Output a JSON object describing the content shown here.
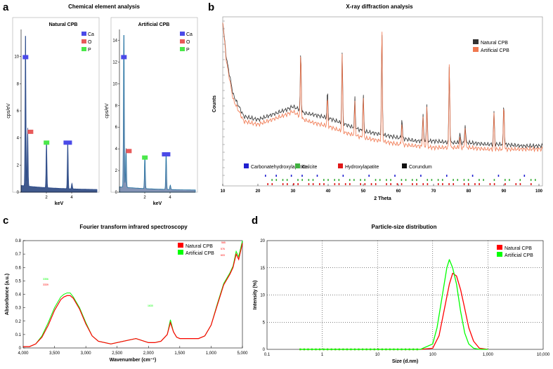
{
  "panel_labels": [
    "a",
    "b",
    "c",
    "d"
  ],
  "colors": {
    "eds_fill": "#1f3c78",
    "eds_line2": "#1f6fa0",
    "ca": "#4a4ae8",
    "o": "#e85a5a",
    "p": "#4ae84a",
    "xrd_natural": "#333333",
    "xrd_artificial": "#f07850",
    "natural_cpb": "#ff0000",
    "artificial_cpb": "#00ff00",
    "carbonate": "#2020d0",
    "calcite": "#40b040",
    "hydroxylapatite": "#e01818",
    "corundum": "#111111"
  },
  "chart_data": [
    {
      "type": "area",
      "title": "Chemical element analysis",
      "subtitle": "Natural CPB",
      "xlabel": "keV",
      "ylabel": "cps/eV",
      "xticks": [
        "2",
        "4"
      ],
      "yticks": [
        "0",
        "2",
        "4",
        "6",
        "8",
        "10"
      ],
      "ylim": [
        0,
        12
      ],
      "xlim": [
        0,
        6
      ],
      "legend": [
        "Ca",
        "O",
        "P"
      ],
      "peaks": [
        {
          "element": "Ca",
          "x": 0.35,
          "y": 11.6
        },
        {
          "element": "O",
          "x": 0.52,
          "y": 4.3
        },
        {
          "element": "P",
          "x": 2.01,
          "y": 3.5
        },
        {
          "element": "Ca",
          "x": 3.69,
          "y": 3.5
        }
      ]
    },
    {
      "type": "area",
      "subtitle": "Artificial CPB",
      "xlabel": "keV",
      "ylabel": "cps/eV",
      "xticks": [
        "2",
        "4"
      ],
      "yticks": [
        "0",
        "2",
        "4",
        "6",
        "8",
        "10",
        "12",
        "14"
      ],
      "ylim": [
        0,
        15
      ],
      "xlim": [
        0,
        6
      ],
      "legend": [
        "Ca",
        "O",
        "P"
      ],
      "peaks": [
        {
          "element": "Ca",
          "x": 0.35,
          "y": 14.7
        },
        {
          "element": "O",
          "x": 0.52,
          "y": 3.6
        },
        {
          "element": "P",
          "x": 2.01,
          "y": 3.0
        },
        {
          "element": "Ca",
          "x": 3.69,
          "y": 3.3
        }
      ]
    },
    {
      "type": "line",
      "title": "X-ray diffraction analysis",
      "xlabel": "2 Theta",
      "ylabel": "Counts",
      "xticks": [
        "10",
        "20",
        "30",
        "40",
        "50",
        "60",
        "70",
        "80",
        "90",
        "100"
      ],
      "xlim": [
        10,
        101
      ],
      "series": [
        {
          "name": "Natural CPB",
          "x": [
            10,
            11,
            13,
            16,
            20,
            24,
            28,
            30,
            32,
            33,
            36,
            40,
            45,
            50,
            55,
            60,
            65,
            70,
            75,
            80,
            85,
            90,
            95,
            100
          ],
          "y": [
            100,
            78,
            55,
            42,
            40,
            43,
            46,
            48,
            46,
            44,
            43,
            41,
            37,
            33,
            31,
            29,
            27,
            27,
            26,
            26,
            25,
            25,
            24,
            24
          ]
        },
        {
          "name": "Artificial CPB",
          "x": [
            10,
            11,
            13,
            16,
            20,
            24,
            28,
            30,
            32,
            33,
            36,
            40,
            45,
            50,
            55,
            60,
            65,
            70,
            75,
            80,
            85,
            90,
            95,
            100
          ],
          "y": [
            100,
            76,
            52,
            39,
            37,
            40,
            43,
            45,
            42,
            40,
            38,
            36,
            32,
            29,
            27,
            25,
            24,
            23,
            23,
            23,
            22,
            22,
            22,
            22
          ]
        }
      ],
      "peaks_2theta": [
        32.2,
        39.8,
        44.0,
        47.6,
        50.0,
        55.3,
        61.0,
        67.0,
        68.1,
        74.5,
        77.5,
        79.0,
        87.2,
        90.0
      ],
      "legend_lower": [
        "Carbonatehydroxylapatite",
        "Calcite",
        "Hydroxylapatite",
        "Corundum"
      ]
    },
    {
      "type": "line",
      "title": "Fourier transform infrared spectroscopy",
      "xlabel": "Wavenumber (cm⁻¹)",
      "ylabel": "Absorbance (a.u.)",
      "xticks": [
        "4,000",
        "3,500",
        "3,000",
        "2,500",
        "2,000",
        "1,500",
        "1,000",
        "5,000"
      ],
      "yticks": [
        "0",
        "0.1",
        "0.2",
        "0.3",
        "0.4",
        "0.5",
        "0.6",
        "0.7",
        "0.8"
      ],
      "ylim": [
        0,
        0.8
      ],
      "xlim": [
        4000,
        500
      ],
      "series": [
        {
          "name": "Natural CPB",
          "x": [
            4000,
            3900,
            3800,
            3700,
            3600,
            3500,
            3400,
            3350,
            3300,
            3250,
            3200,
            3100,
            3000,
            2900,
            2800,
            2600,
            2400,
            2200,
            2000,
            1900,
            1800,
            1700,
            1650,
            1600,
            1550,
            1500,
            1400,
            1200,
            1100,
            1000,
            900,
            800,
            700,
            650,
            600,
            560,
            520,
            500
          ],
          "y": [
            0.01,
            0.01,
            0.03,
            0.08,
            0.17,
            0.28,
            0.36,
            0.38,
            0.39,
            0.39,
            0.37,
            0.29,
            0.18,
            0.09,
            0.05,
            0.03,
            0.05,
            0.07,
            0.04,
            0.04,
            0.05,
            0.1,
            0.19,
            0.12,
            0.08,
            0.07,
            0.07,
            0.07,
            0.09,
            0.17,
            0.32,
            0.47,
            0.55,
            0.6,
            0.7,
            0.66,
            0.74,
            0.78
          ]
        },
        {
          "name": "Artificial CPB",
          "x": [
            4000,
            3900,
            3800,
            3700,
            3600,
            3500,
            3400,
            3350,
            3300,
            3250,
            3200,
            3100,
            3000,
            2900,
            2800,
            2600,
            2400,
            2200,
            2000,
            1900,
            1800,
            1700,
            1650,
            1600,
            1550,
            1500,
            1400,
            1200,
            1100,
            1000,
            900,
            800,
            700,
            650,
            600,
            560,
            520,
            500
          ],
          "y": [
            0.01,
            0.01,
            0.03,
            0.09,
            0.19,
            0.3,
            0.38,
            0.4,
            0.41,
            0.41,
            0.38,
            0.3,
            0.19,
            0.09,
            0.05,
            0.03,
            0.05,
            0.07,
            0.04,
            0.04,
            0.05,
            0.1,
            0.21,
            0.12,
            0.08,
            0.07,
            0.07,
            0.07,
            0.09,
            0.17,
            0.33,
            0.48,
            0.56,
            0.61,
            0.72,
            0.68,
            0.76,
            0.8
          ]
        }
      ],
      "annotations": [
        {
          "text": "3339",
          "color": "red"
        },
        {
          "text": "3356",
          "color": "green"
        },
        {
          "text": "1630",
          "color": "green"
        },
        {
          "text": "565",
          "color": "red"
        },
        {
          "text": "576",
          "color": "red"
        },
        {
          "text": "603",
          "color": "red"
        }
      ]
    },
    {
      "type": "line",
      "title": "Particle-size distribution",
      "xlabel": "Size (d.nm)",
      "ylabel": "Intensity (%)",
      "xscale": "log",
      "xlim": [
        0.1,
        10000
      ],
      "ylim": [
        0,
        20
      ],
      "xticks": [
        "0.1",
        "1",
        "10",
        "100",
        "1,000",
        "10,000"
      ],
      "yticks": [
        "0",
        "5",
        "10",
        "15",
        "20"
      ],
      "series": [
        {
          "name": "Natural CPB",
          "x": [
            0.4,
            1,
            10,
            60,
            100,
            130,
            160,
            200,
            230,
            270,
            320,
            380,
            450,
            550,
            700,
            1000
          ],
          "y": [
            0,
            0,
            0,
            0,
            0.2,
            2.5,
            7,
            12,
            14,
            13.5,
            11,
            7.5,
            4,
            1.5,
            0.2,
            0
          ]
        },
        {
          "name": "Artificial CPB",
          "x": [
            0.4,
            1,
            10,
            60,
            100,
            120,
            150,
            180,
            200,
            230,
            270,
            320,
            380,
            450,
            550,
            700,
            1000
          ],
          "y": [
            0,
            0,
            0,
            0,
            1,
            4,
            10,
            15,
            16.5,
            15,
            12,
            7,
            3,
            1,
            0.2,
            0,
            0
          ]
        }
      ]
    }
  ]
}
